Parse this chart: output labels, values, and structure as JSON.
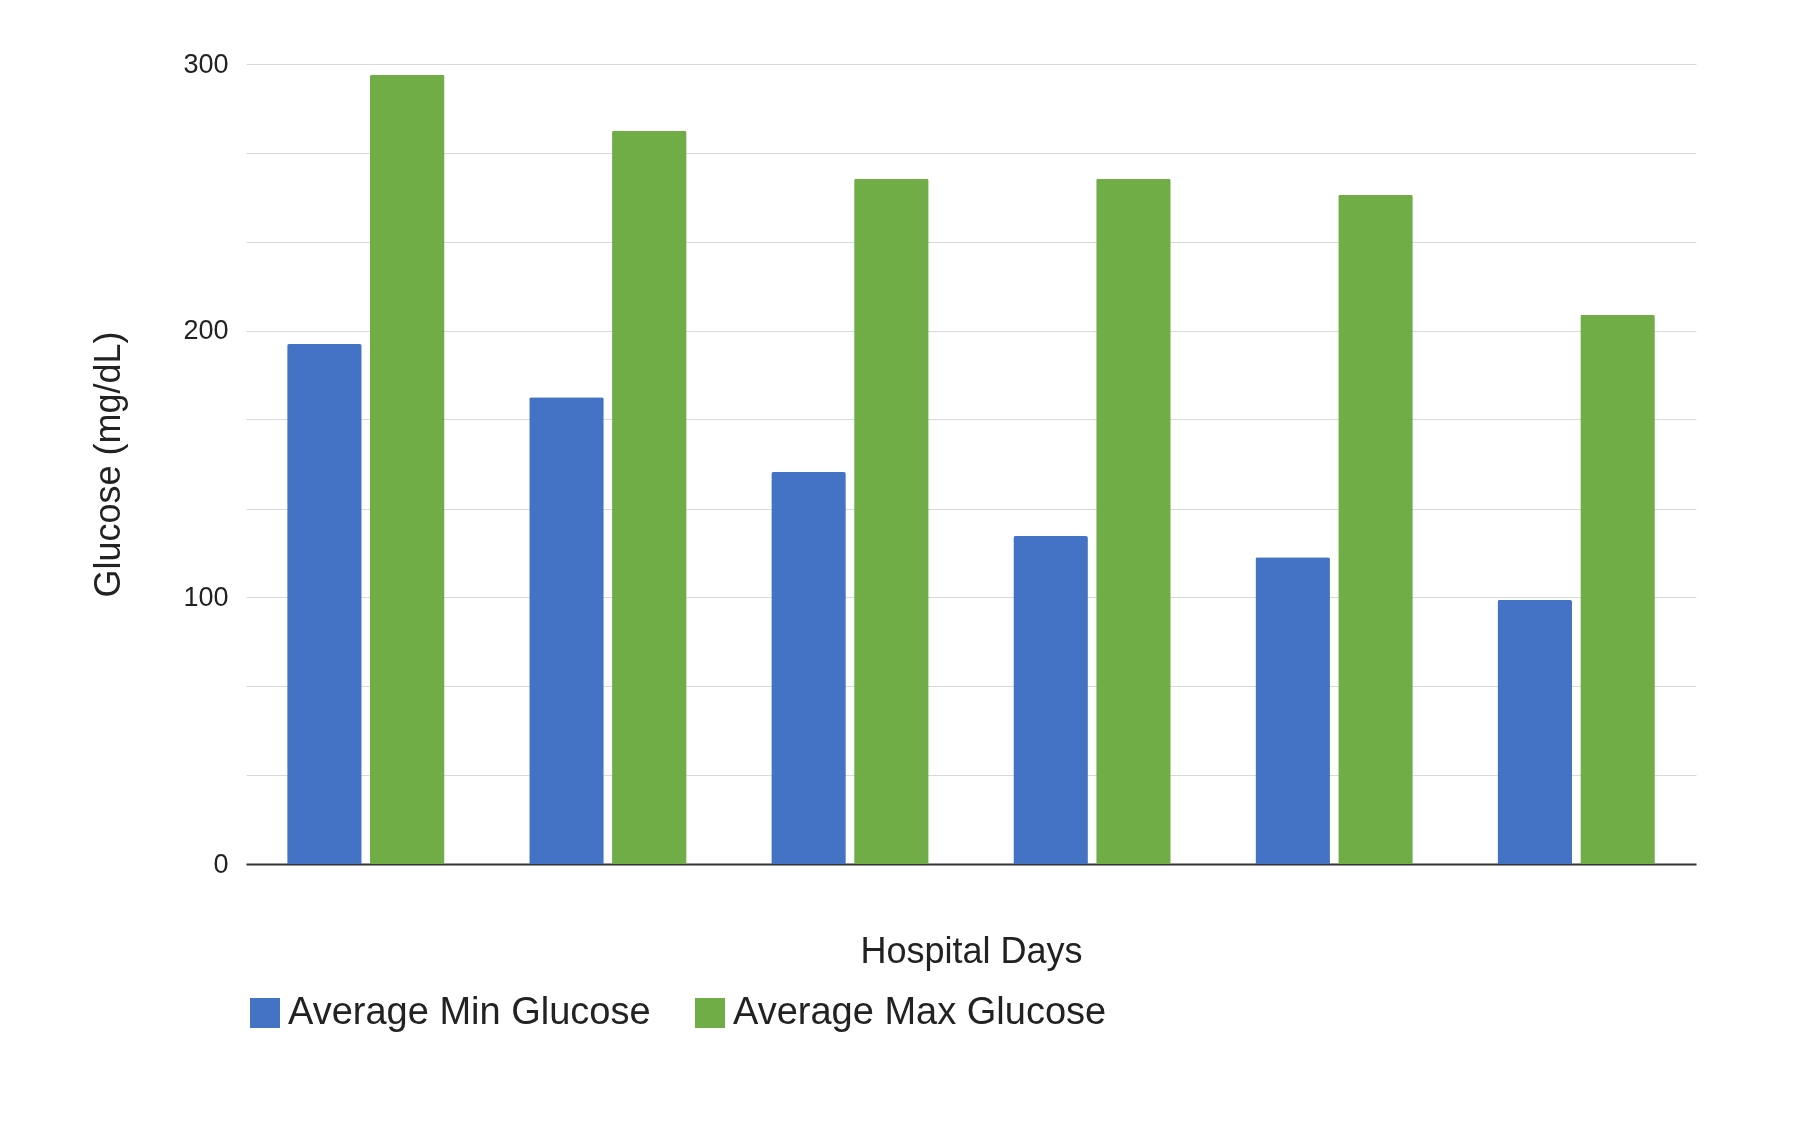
{
  "chart_data": {
    "type": "bar",
    "xlabel": "Hospital Days",
    "ylabel": "Glucose (mg/dL)",
    "categories": [
      null,
      null,
      null,
      null,
      null,
      null
    ],
    "series": [
      {
        "name": "Average Min Glucose",
        "color": "#4472c4",
        "values": [
          195,
          175,
          147,
          123,
          115,
          99
        ]
      },
      {
        "name": "Average Max Glucose",
        "color": "#70ad47",
        "values": [
          296,
          275,
          257,
          257,
          251,
          206
        ]
      }
    ],
    "ylim": [
      0,
      300
    ],
    "yticks": [
      0,
      {
        "value": 33.3,
        "label": null
      },
      {
        "value": 66.7,
        "label": null
      },
      100,
      {
        "value": 133.3,
        "label": null
      },
      {
        "value": 166.7,
        "label": null
      },
      200,
      {
        "value": 233.3,
        "label": null
      },
      {
        "value": 266.7,
        "label": null
      },
      300
    ],
    "grid": "y",
    "legend": "bottom",
    "tick_labels": "y"
  }
}
